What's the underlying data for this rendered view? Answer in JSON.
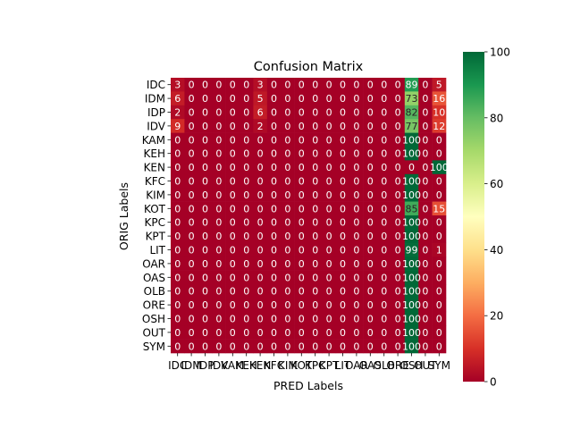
{
  "chart_data": {
    "type": "heatmap",
    "title": "Confusion Matrix",
    "xlabel": "PRED Labels",
    "ylabel": "ORIG Labels",
    "labels": [
      "IDC",
      "IDM",
      "IDP",
      "IDV",
      "KAM",
      "KEH",
      "KEN",
      "KFC",
      "KIM",
      "KOT",
      "KPC",
      "KPT",
      "LIT",
      "OAR",
      "OAS",
      "OLB",
      "ORE",
      "OSH",
      "OUT",
      "SYM"
    ],
    "matrix": [
      [
        3,
        0,
        0,
        0,
        0,
        0,
        3,
        0,
        0,
        0,
        0,
        0,
        0,
        0,
        0,
        0,
        0,
        89,
        0,
        5
      ],
      [
        6,
        0,
        0,
        0,
        0,
        0,
        5,
        0,
        0,
        0,
        0,
        0,
        0,
        0,
        0,
        0,
        0,
        73,
        0,
        16
      ],
      [
        2,
        0,
        0,
        0,
        0,
        0,
        6,
        0,
        0,
        0,
        0,
        0,
        0,
        0,
        0,
        0,
        0,
        82,
        0,
        10
      ],
      [
        9,
        0,
        0,
        0,
        0,
        0,
        2,
        0,
        0,
        0,
        0,
        0,
        0,
        0,
        0,
        0,
        0,
        77,
        0,
        12
      ],
      [
        0,
        0,
        0,
        0,
        0,
        0,
        0,
        0,
        0,
        0,
        0,
        0,
        0,
        0,
        0,
        0,
        0,
        100,
        0,
        0
      ],
      [
        0,
        0,
        0,
        0,
        0,
        0,
        0,
        0,
        0,
        0,
        0,
        0,
        0,
        0,
        0,
        0,
        0,
        100,
        0,
        0
      ],
      [
        0,
        0,
        0,
        0,
        0,
        0,
        0,
        0,
        0,
        0,
        0,
        0,
        0,
        0,
        0,
        0,
        0,
        0,
        0,
        100
      ],
      [
        0,
        0,
        0,
        0,
        0,
        0,
        0,
        0,
        0,
        0,
        0,
        0,
        0,
        0,
        0,
        0,
        0,
        100,
        0,
        0
      ],
      [
        0,
        0,
        0,
        0,
        0,
        0,
        0,
        0,
        0,
        0,
        0,
        0,
        0,
        0,
        0,
        0,
        0,
        100,
        0,
        0
      ],
      [
        0,
        0,
        0,
        0,
        0,
        0,
        0,
        0,
        0,
        0,
        0,
        0,
        0,
        0,
        0,
        0,
        0,
        85,
        0,
        15
      ],
      [
        0,
        0,
        0,
        0,
        0,
        0,
        0,
        0,
        0,
        0,
        0,
        0,
        0,
        0,
        0,
        0,
        0,
        100,
        0,
        0
      ],
      [
        0,
        0,
        0,
        0,
        0,
        0,
        0,
        0,
        0,
        0,
        0,
        0,
        0,
        0,
        0,
        0,
        0,
        100,
        0,
        0
      ],
      [
        0,
        0,
        0,
        0,
        0,
        0,
        0,
        0,
        0,
        0,
        0,
        0,
        0,
        0,
        0,
        0,
        0,
        99,
        0,
        1
      ],
      [
        0,
        0,
        0,
        0,
        0,
        0,
        0,
        0,
        0,
        0,
        0,
        0,
        0,
        0,
        0,
        0,
        0,
        100,
        0,
        0
      ],
      [
        0,
        0,
        0,
        0,
        0,
        0,
        0,
        0,
        0,
        0,
        0,
        0,
        0,
        0,
        0,
        0,
        0,
        100,
        0,
        0
      ],
      [
        0,
        0,
        0,
        0,
        0,
        0,
        0,
        0,
        0,
        0,
        0,
        0,
        0,
        0,
        0,
        0,
        0,
        100,
        0,
        0
      ],
      [
        0,
        0,
        0,
        0,
        0,
        0,
        0,
        0,
        0,
        0,
        0,
        0,
        0,
        0,
        0,
        0,
        0,
        100,
        0,
        0
      ],
      [
        0,
        0,
        0,
        0,
        0,
        0,
        0,
        0,
        0,
        0,
        0,
        0,
        0,
        0,
        0,
        0,
        0,
        100,
        0,
        0
      ],
      [
        0,
        0,
        0,
        0,
        0,
        0,
        0,
        0,
        0,
        0,
        0,
        0,
        0,
        0,
        0,
        0,
        0,
        100,
        0,
        0
      ],
      [
        0,
        0,
        0,
        0,
        0,
        0,
        0,
        0,
        0,
        0,
        0,
        0,
        0,
        0,
        0,
        0,
        0,
        100,
        0,
        0
      ]
    ],
    "colormap": "RdYlGn",
    "vmin": 0,
    "vmax": 100,
    "colorbar_ticks": [
      0,
      20,
      40,
      60,
      80,
      100
    ],
    "annotations": true
  }
}
